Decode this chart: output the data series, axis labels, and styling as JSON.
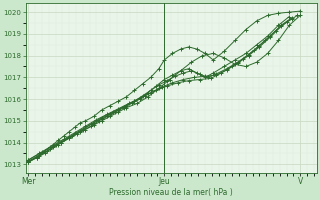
{
  "bg_color": "#cce8cc",
  "plot_bg_color": "#e8f5e8",
  "grid_major_color": "#c8d8c0",
  "grid_minor_color": "#dceadc",
  "line_color": "#2d6a2d",
  "ylabel_ticks": [
    1013,
    1014,
    1015,
    1016,
    1017,
    1018,
    1019,
    1020
  ],
  "ylim": [
    1012.6,
    1020.4
  ],
  "xlabel": "Pression niveau de la mer( hPa )",
  "xtick_labels": [
    "Mer",
    "Jeu",
    "V"
  ],
  "xtick_positions": [
    0.0,
    0.5,
    1.0
  ],
  "xlim": [
    -0.01,
    1.06
  ],
  "vline_x": 0.5,
  "lines": [
    {
      "x": [
        0.0,
        0.03,
        0.06,
        0.09,
        0.11,
        0.13,
        0.15,
        0.17,
        0.19,
        0.21,
        0.24,
        0.27,
        0.3,
        0.33,
        0.36,
        0.39,
        0.42,
        0.45,
        0.48,
        0.5,
        0.53,
        0.56,
        0.59,
        0.62,
        0.65,
        0.68,
        0.72,
        0.76,
        0.8,
        0.84,
        0.88,
        0.92,
        0.96,
        1.0
      ],
      "y": [
        1013.1,
        1013.3,
        1013.6,
        1013.9,
        1014.1,
        1014.3,
        1014.5,
        1014.7,
        1014.9,
        1015.0,
        1015.2,
        1015.5,
        1015.7,
        1015.9,
        1016.1,
        1016.4,
        1016.7,
        1017.0,
        1017.4,
        1017.8,
        1018.1,
        1018.3,
        1018.4,
        1018.3,
        1018.1,
        1017.8,
        1018.2,
        1018.7,
        1019.2,
        1019.6,
        1019.85,
        1019.95,
        1020.0,
        1020.05
      ]
    },
    {
      "x": [
        0.0,
        0.03,
        0.06,
        0.09,
        0.12,
        0.15,
        0.18,
        0.21,
        0.24,
        0.27,
        0.3,
        0.33,
        0.36,
        0.4,
        0.44,
        0.48,
        0.52,
        0.56,
        0.6,
        0.64,
        0.68,
        0.72,
        0.76,
        0.8,
        0.84,
        0.88,
        0.92,
        0.96,
        1.0
      ],
      "y": [
        1013.1,
        1013.3,
        1013.5,
        1013.8,
        1014.0,
        1014.2,
        1014.4,
        1014.6,
        1014.8,
        1015.0,
        1015.2,
        1015.4,
        1015.6,
        1015.8,
        1016.1,
        1016.5,
        1016.9,
        1017.3,
        1017.7,
        1018.0,
        1018.1,
        1017.9,
        1017.6,
        1017.5,
        1017.7,
        1018.1,
        1018.7,
        1019.4,
        1019.85
      ]
    },
    {
      "x": [
        0.0,
        0.03,
        0.07,
        0.11,
        0.15,
        0.19,
        0.23,
        0.26,
        0.29,
        0.32,
        0.35,
        0.38,
        0.41,
        0.44,
        0.47,
        0.5,
        0.53,
        0.56,
        0.59,
        0.62,
        0.65,
        0.68,
        0.72,
        0.76,
        0.8,
        0.84,
        0.88,
        0.92,
        0.96
      ],
      "y": [
        1013.1,
        1013.35,
        1013.6,
        1013.9,
        1014.2,
        1014.5,
        1014.75,
        1015.0,
        1015.2,
        1015.4,
        1015.6,
        1015.8,
        1016.0,
        1016.3,
        1016.6,
        1016.9,
        1017.1,
        1017.3,
        1017.4,
        1017.2,
        1017.0,
        1017.2,
        1017.5,
        1017.8,
        1018.1,
        1018.5,
        1018.9,
        1019.4,
        1019.8
      ]
    },
    {
      "x": [
        0.0,
        0.04,
        0.08,
        0.12,
        0.16,
        0.2,
        0.24,
        0.27,
        0.3,
        0.33,
        0.36,
        0.39,
        0.42,
        0.45,
        0.48,
        0.51,
        0.54,
        0.57,
        0.6,
        0.63,
        0.66,
        0.69,
        0.73,
        0.77,
        0.81,
        0.85,
        0.89,
        0.93,
        0.97
      ],
      "y": [
        1013.15,
        1013.4,
        1013.7,
        1014.0,
        1014.3,
        1014.6,
        1014.9,
        1015.1,
        1015.3,
        1015.5,
        1015.7,
        1015.9,
        1016.15,
        1016.4,
        1016.65,
        1016.85,
        1017.05,
        1017.2,
        1017.3,
        1017.15,
        1017.0,
        1017.15,
        1017.4,
        1017.7,
        1018.05,
        1018.45,
        1018.9,
        1019.4,
        1019.75
      ]
    },
    {
      "x": [
        0.0,
        0.04,
        0.08,
        0.13,
        0.17,
        0.21,
        0.25,
        0.29,
        0.33,
        0.37,
        0.41,
        0.45,
        0.49,
        0.53,
        0.57,
        0.61,
        0.65,
        0.69,
        0.73,
        0.77,
        0.81,
        0.85,
        0.89,
        0.93,
        0.97
      ],
      "y": [
        1013.2,
        1013.5,
        1013.8,
        1014.15,
        1014.45,
        1014.75,
        1015.05,
        1015.3,
        1015.55,
        1015.8,
        1016.05,
        1016.3,
        1016.55,
        1016.75,
        1016.9,
        1017.0,
        1017.05,
        1017.1,
        1017.35,
        1017.65,
        1018.0,
        1018.4,
        1018.85,
        1019.35,
        1019.7
      ]
    },
    {
      "x": [
        0.0,
        0.05,
        0.1,
        0.15,
        0.19,
        0.23,
        0.27,
        0.31,
        0.35,
        0.39,
        0.43,
        0.47,
        0.51,
        0.55,
        0.59,
        0.63,
        0.67,
        0.71,
        0.75,
        0.79,
        0.83,
        0.87,
        0.91,
        0.95,
        0.99
      ],
      "y": [
        1013.2,
        1013.55,
        1013.9,
        1014.25,
        1014.55,
        1014.85,
        1015.15,
        1015.4,
        1015.65,
        1015.9,
        1016.15,
        1016.4,
        1016.6,
        1016.75,
        1016.85,
        1016.9,
        1016.95,
        1017.2,
        1017.5,
        1017.85,
        1018.25,
        1018.7,
        1019.15,
        1019.55,
        1019.85
      ]
    }
  ]
}
